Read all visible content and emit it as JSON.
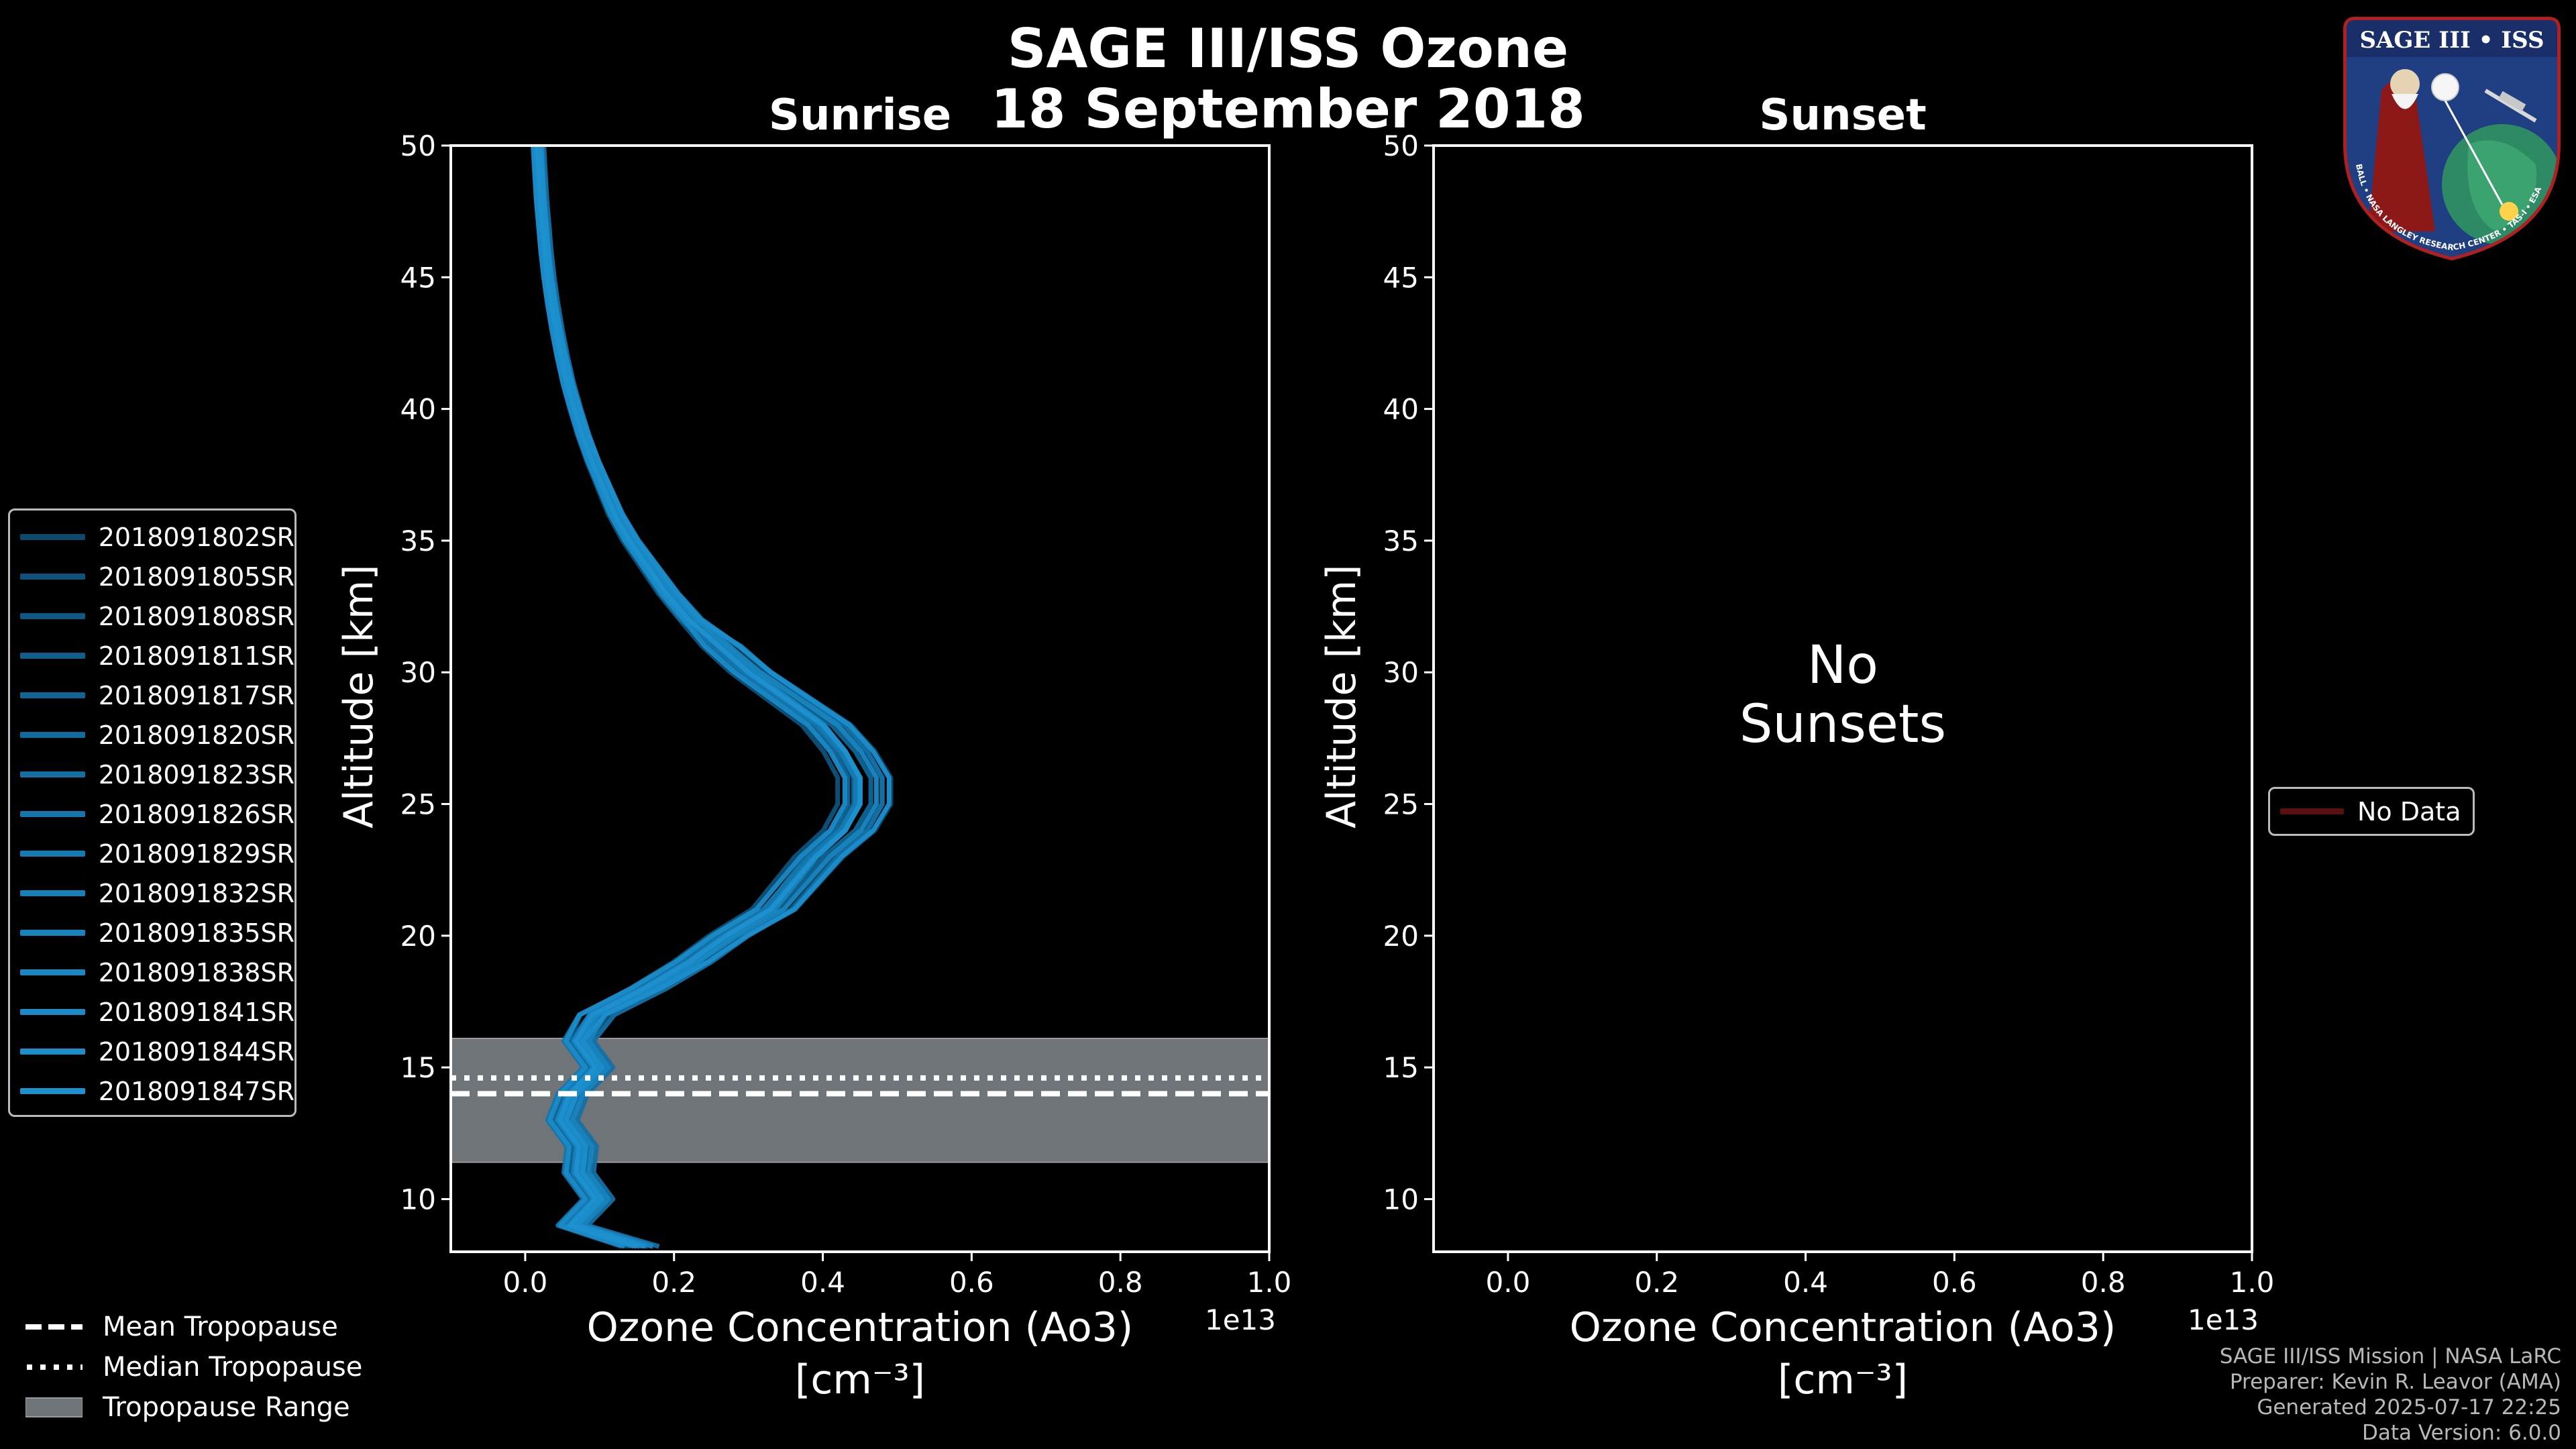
{
  "title_line1": "SAGE III/ISS Ozone",
  "title_line2": "18 September 2018",
  "logo": {
    "text": "SAGE III • ISS",
    "ring_text": "BALL • NASA LANGLEY RESEARCH CENTER • TAS-I • ESA"
  },
  "colors": {
    "series": "#1d90cf",
    "series_dark": "#0b4a6e",
    "tropo_band": "#6f7478",
    "axes": "#ffffff"
  },
  "chart_data": [
    {
      "type": "line",
      "title": "Sunrise",
      "xlabel_line1": "Ozone Concentration (Ao3)",
      "xlabel_line2": "[cm⁻³]",
      "x_offset_label": "1e13",
      "ylabel": "Altitude [km]",
      "xlim": [
        -0.1,
        1.0
      ],
      "ylim": [
        8,
        50
      ],
      "xticks": [
        0.0,
        0.2,
        0.4,
        0.6,
        0.8,
        1.0
      ],
      "xtick_labels": [
        "0.0",
        "0.2",
        "0.4",
        "0.6",
        "0.8",
        "1.0"
      ],
      "yticks": [
        10,
        15,
        20,
        25,
        30,
        35,
        40,
        45,
        50
      ],
      "ytick_labels": [
        "10",
        "15",
        "20",
        "25",
        "30",
        "35",
        "40",
        "45",
        "50"
      ],
      "tropopause": {
        "mean": 14.0,
        "median": 14.6,
        "range": [
          11.4,
          16.1
        ]
      },
      "base_profile": {
        "altitude": [
          8.2,
          9,
          10,
          11,
          12,
          13,
          14,
          15,
          16,
          17,
          18,
          19,
          20,
          21,
          22,
          23,
          24,
          25,
          26,
          27,
          28,
          29,
          30,
          31,
          32,
          33,
          34,
          35,
          36,
          37,
          38,
          39,
          40,
          41,
          42,
          43,
          44,
          45,
          46,
          47,
          48,
          49,
          50
        ],
        "ozone": [
          0.15,
          0.06,
          0.07,
          0.08,
          0.06,
          0.07,
          0.06,
          0.07,
          0.08,
          0.09,
          0.16,
          0.22,
          0.27,
          0.33,
          0.36,
          0.39,
          0.43,
          0.45,
          0.45,
          0.43,
          0.4,
          0.35,
          0.3,
          0.26,
          0.22,
          0.19,
          0.165,
          0.14,
          0.12,
          0.105,
          0.09,
          0.077,
          0.066,
          0.056,
          0.048,
          0.041,
          0.035,
          0.03,
          0.026,
          0.023,
          0.02,
          0.018,
          0.016
        ]
      },
      "series": [
        {
          "name": "2018091802SR",
          "color": "#0b4a6e",
          "scale": 1.07,
          "shift": 0.01
        },
        {
          "name": "2018091805SR",
          "color": "#0d527a",
          "scale": 0.96,
          "shift": -0.012
        },
        {
          "name": "2018091808SR",
          "color": "#0e5984",
          "scale": 1.02,
          "shift": 0.02
        },
        {
          "name": "2018091811SR",
          "color": "#0f5f8d",
          "scale": 0.98,
          "shift": 0.0
        },
        {
          "name": "2018091817SR",
          "color": "#106595",
          "scale": 1.05,
          "shift": -0.008
        },
        {
          "name": "2018091820SR",
          "color": "#126b9d",
          "scale": 0.93,
          "shift": 0.015
        },
        {
          "name": "2018091823SR",
          "color": "#1370a5",
          "scale": 1.0,
          "shift": 0.03
        },
        {
          "name": "2018091826SR",
          "color": "#1476ac",
          "scale": 1.03,
          "shift": -0.02
        },
        {
          "name": "2018091829SR",
          "color": "#157bb3",
          "scale": 0.97,
          "shift": 0.008
        },
        {
          "name": "2018091832SR",
          "color": "#1780b9",
          "scale": 1.01,
          "shift": -0.004
        },
        {
          "name": "2018091835SR",
          "color": "#1884be",
          "scale": 0.95,
          "shift": 0.022
        },
        {
          "name": "2018091838SR",
          "color": "#1988c3",
          "scale": 1.04,
          "shift": 0.004
        },
        {
          "name": "2018091841SR",
          "color": "#1a8bc8",
          "scale": 0.99,
          "shift": -0.016
        },
        {
          "name": "2018091844SR",
          "color": "#1c8ecc",
          "scale": 1.06,
          "shift": 0.012
        },
        {
          "name": "2018091847SR",
          "color": "#1d90cf",
          "scale": 1.0,
          "shift": 0.0
        }
      ]
    },
    {
      "type": "line",
      "title": "Sunset",
      "xlabel_line1": "Ozone Concentration (Ao3)",
      "xlabel_line2": "[cm⁻³]",
      "x_offset_label": "1e13",
      "ylabel": "Altitude [km]",
      "xlim": [
        -0.1,
        1.0
      ],
      "ylim": [
        8,
        50
      ],
      "xticks": [
        0.0,
        0.2,
        0.4,
        0.6,
        0.8,
        1.0
      ],
      "xtick_labels": [
        "0.0",
        "0.2",
        "0.4",
        "0.6",
        "0.8",
        "1.0"
      ],
      "yticks": [
        10,
        15,
        20,
        25,
        30,
        35,
        40,
        45,
        50
      ],
      "ytick_labels": [
        "10",
        "15",
        "20",
        "25",
        "30",
        "35",
        "40",
        "45",
        "50"
      ],
      "annotation_line1": "No",
      "annotation_line2": "Sunsets",
      "legend": [
        {
          "name": "No Data",
          "color": "#5a1010"
        }
      ],
      "series": []
    }
  ],
  "tropopause_legend": {
    "mean": "Mean Tropopause",
    "median": "Median Tropopause",
    "range": "Tropopause Range"
  },
  "footer": {
    "line1": "SAGE III/ISS Mission | NASA LaRC",
    "line2": "Preparer: Kevin R. Leavor (AMA)",
    "line3": "Generated 2025-07-17 22:25",
    "line4": "Data Version: 6.0.0"
  }
}
